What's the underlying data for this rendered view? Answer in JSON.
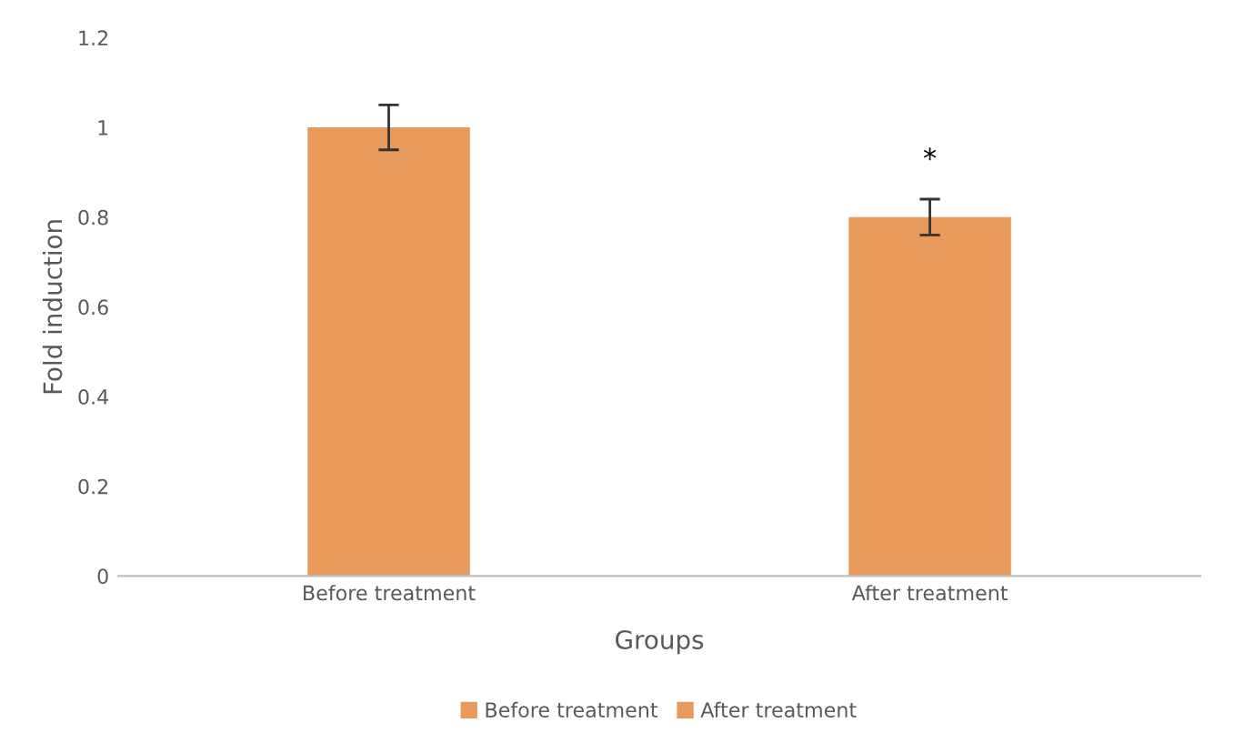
{
  "chart_data": {
    "type": "bar",
    "xlabel": "Groups",
    "ylabel": "Fold induction",
    "categories": [
      "Before treatment",
      "After treatment"
    ],
    "series": [
      {
        "name": "Before treatment",
        "color": "#e8995c",
        "values": [
          1.0,
          null
        ],
        "errors": [
          0.05,
          null
        ]
      },
      {
        "name": "After treatment",
        "color": "#e8995c",
        "values": [
          null,
          0.8
        ],
        "errors": [
          null,
          0.04
        ]
      }
    ],
    "ylim": [
      0,
      1.2
    ],
    "yticks": [
      0,
      0.2,
      0.4,
      0.6,
      0.8,
      1,
      1.2
    ],
    "annotations": [
      "*"
    ],
    "legend": "bottom"
  }
}
